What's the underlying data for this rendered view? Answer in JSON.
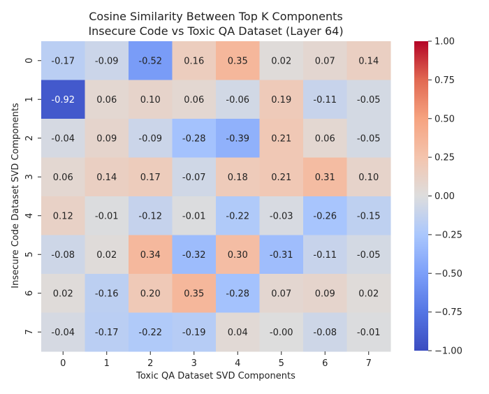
{
  "chart_data": {
    "type": "heatmap",
    "title": [
      "Cosine Similarity Between Top K Components",
      "Insecure Code vs Toxic QA Dataset (Layer 64)"
    ],
    "xlabel": "Toxic QA Dataset SVD Components",
    "ylabel": "Insecure Code Dataset SVD Components",
    "x_ticks": [
      "0",
      "1",
      "2",
      "3",
      "4",
      "5",
      "6",
      "7"
    ],
    "y_ticks": [
      "0",
      "1",
      "2",
      "3",
      "4",
      "5",
      "6",
      "7"
    ],
    "values": [
      [
        -0.17,
        -0.09,
        -0.52,
        0.16,
        0.35,
        0.02,
        0.07,
        0.14
      ],
      [
        -0.92,
        0.06,
        0.1,
        0.06,
        -0.06,
        0.19,
        -0.11,
        -0.05
      ],
      [
        -0.04,
        0.09,
        -0.09,
        -0.28,
        -0.39,
        0.21,
        0.06,
        -0.05
      ],
      [
        0.06,
        0.14,
        0.17,
        -0.07,
        0.18,
        0.21,
        0.31,
        0.1
      ],
      [
        0.12,
        -0.01,
        -0.12,
        -0.01,
        -0.22,
        -0.03,
        -0.26,
        -0.15
      ],
      [
        -0.08,
        0.02,
        0.34,
        -0.32,
        0.3,
        -0.31,
        -0.11,
        -0.05
      ],
      [
        0.02,
        -0.16,
        0.2,
        0.35,
        -0.28,
        0.07,
        0.09,
        0.02
      ],
      [
        -0.04,
        -0.17,
        -0.22,
        -0.19,
        0.04,
        -0.0,
        -0.08,
        -0.01
      ]
    ],
    "cell_labels": [
      [
        "-0.17",
        "-0.09",
        "-0.52",
        "0.16",
        "0.35",
        "0.02",
        "0.07",
        "0.14"
      ],
      [
        "-0.92",
        "0.06",
        "0.10",
        "0.06",
        "-0.06",
        "0.19",
        "-0.11",
        "-0.05"
      ],
      [
        "-0.04",
        "0.09",
        "-0.09",
        "-0.28",
        "-0.39",
        "0.21",
        "0.06",
        "-0.05"
      ],
      [
        "0.06",
        "0.14",
        "0.17",
        "-0.07",
        "0.18",
        "0.21",
        "0.31",
        "0.10"
      ],
      [
        "0.12",
        "-0.01",
        "-0.12",
        "-0.01",
        "-0.22",
        "-0.03",
        "-0.26",
        "-0.15"
      ],
      [
        "-0.08",
        "0.02",
        "0.34",
        "-0.32",
        "0.30",
        "-0.31",
        "-0.11",
        "-0.05"
      ],
      [
        "0.02",
        "-0.16",
        "0.20",
        "0.35",
        "-0.28",
        "0.07",
        "0.09",
        "0.02"
      ],
      [
        "-0.04",
        "-0.17",
        "-0.22",
        "-0.19",
        "0.04",
        "-0.00",
        "-0.08",
        "-0.01"
      ]
    ],
    "colormap": "coolwarm",
    "vmin": -1.0,
    "vmax": 1.0,
    "colorbar_ticks": [
      1.0,
      0.75,
      0.5,
      0.25,
      0.0,
      -0.25,
      -0.5,
      -0.75,
      -1.0
    ],
    "colorbar_tick_labels": [
      "1.00",
      "0.75",
      "0.50",
      "0.25",
      "0.00",
      "−0.25",
      "−0.50",
      "−0.75",
      "−1.00"
    ]
  }
}
